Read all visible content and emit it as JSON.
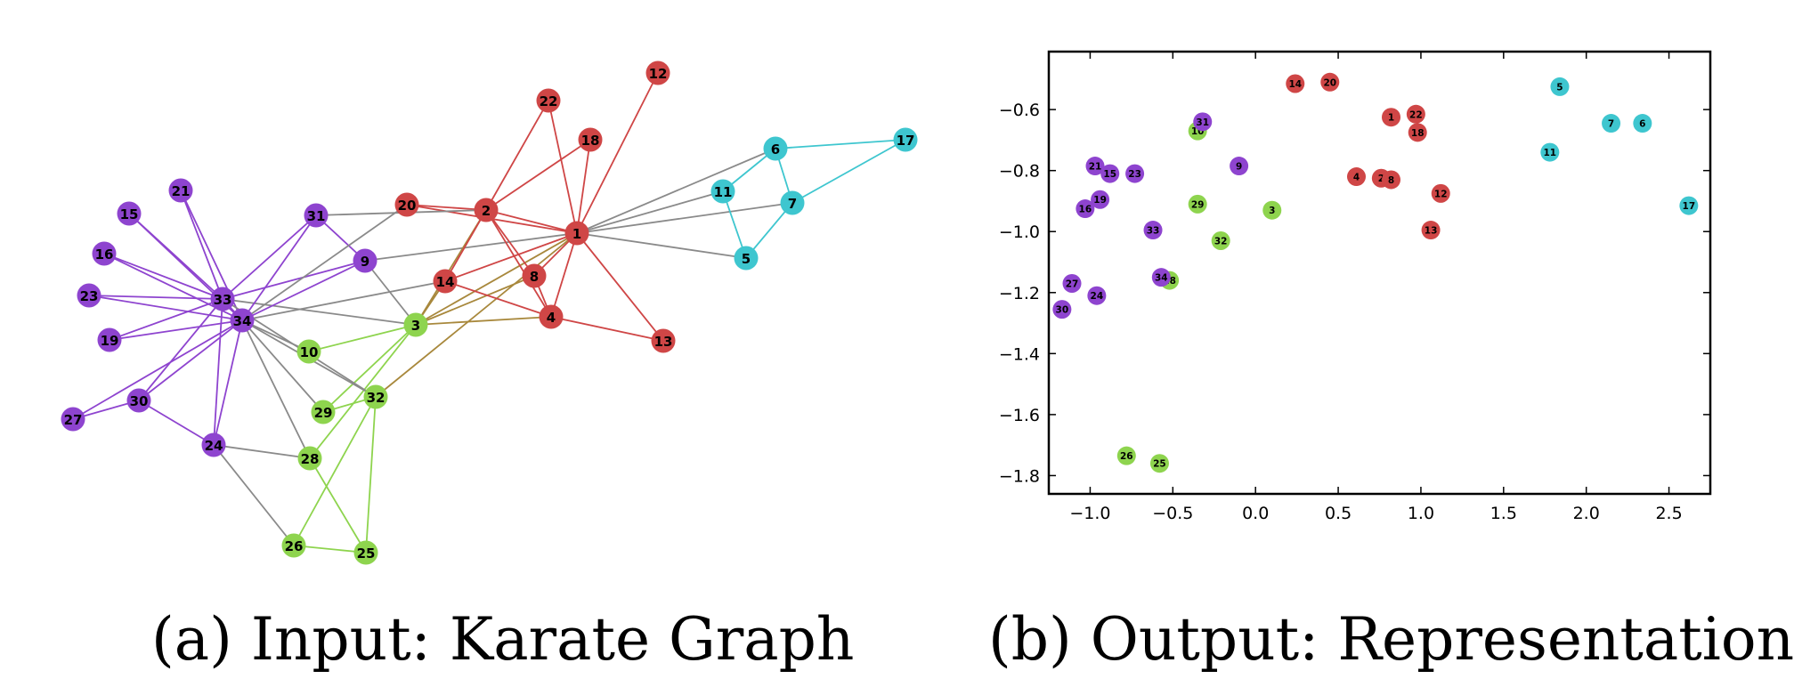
{
  "captions": {
    "a": "(a) Input: Karate Graph",
    "b": "(b) Output: Representation"
  },
  "colors": {
    "purple": "#8e44cf",
    "red": "#cf4646",
    "cyan": "#3ec6cf",
    "green": "#8ed44e",
    "gray_edge": "#8a8a8a",
    "olive_edge": "#a8883c"
  },
  "graph": {
    "nodes": [
      {
        "id": "1",
        "group": "red"
      },
      {
        "id": "2",
        "group": "red"
      },
      {
        "id": "3",
        "group": "green"
      },
      {
        "id": "4",
        "group": "red"
      },
      {
        "id": "5",
        "group": "cyan"
      },
      {
        "id": "6",
        "group": "cyan"
      },
      {
        "id": "7",
        "group": "cyan"
      },
      {
        "id": "8",
        "group": "red"
      },
      {
        "id": "9",
        "group": "purple"
      },
      {
        "id": "10",
        "group": "green"
      },
      {
        "id": "11",
        "group": "cyan"
      },
      {
        "id": "12",
        "group": "red"
      },
      {
        "id": "13",
        "group": "red"
      },
      {
        "id": "14",
        "group": "red"
      },
      {
        "id": "15",
        "group": "purple"
      },
      {
        "id": "16",
        "group": "purple"
      },
      {
        "id": "17",
        "group": "cyan"
      },
      {
        "id": "18",
        "group": "red"
      },
      {
        "id": "19",
        "group": "purple"
      },
      {
        "id": "20",
        "group": "red"
      },
      {
        "id": "21",
        "group": "purple"
      },
      {
        "id": "22",
        "group": "red"
      },
      {
        "id": "23",
        "group": "purple"
      },
      {
        "id": "24",
        "group": "purple"
      },
      {
        "id": "25",
        "group": "green"
      },
      {
        "id": "26",
        "group": "green"
      },
      {
        "id": "27",
        "group": "purple"
      },
      {
        "id": "28",
        "group": "green"
      },
      {
        "id": "29",
        "group": "green"
      },
      {
        "id": "30",
        "group": "purple"
      },
      {
        "id": "31",
        "group": "purple"
      },
      {
        "id": "32",
        "group": "green"
      },
      {
        "id": "33",
        "group": "purple"
      },
      {
        "id": "34",
        "group": "purple"
      }
    ],
    "edges": [
      [
        "1",
        "2"
      ],
      [
        "1",
        "3"
      ],
      [
        "1",
        "4"
      ],
      [
        "1",
        "5"
      ],
      [
        "1",
        "6"
      ],
      [
        "1",
        "7"
      ],
      [
        "1",
        "8"
      ],
      [
        "1",
        "9"
      ],
      [
        "1",
        "11"
      ],
      [
        "1",
        "12"
      ],
      [
        "1",
        "13"
      ],
      [
        "1",
        "14"
      ],
      [
        "1",
        "18"
      ],
      [
        "1",
        "20"
      ],
      [
        "1",
        "22"
      ],
      [
        "1",
        "32"
      ],
      [
        "2",
        "3"
      ],
      [
        "2",
        "4"
      ],
      [
        "2",
        "8"
      ],
      [
        "2",
        "14"
      ],
      [
        "2",
        "18"
      ],
      [
        "2",
        "20"
      ],
      [
        "2",
        "22"
      ],
      [
        "2",
        "31"
      ],
      [
        "3",
        "4"
      ],
      [
        "3",
        "8"
      ],
      [
        "3",
        "9"
      ],
      [
        "3",
        "10"
      ],
      [
        "3",
        "14"
      ],
      [
        "3",
        "28"
      ],
      [
        "3",
        "29"
      ],
      [
        "3",
        "33"
      ],
      [
        "4",
        "8"
      ],
      [
        "4",
        "13"
      ],
      [
        "4",
        "14"
      ],
      [
        "5",
        "7"
      ],
      [
        "5",
        "11"
      ],
      [
        "6",
        "7"
      ],
      [
        "6",
        "11"
      ],
      [
        "6",
        "17"
      ],
      [
        "7",
        "17"
      ],
      [
        "9",
        "31"
      ],
      [
        "9",
        "33"
      ],
      [
        "9",
        "34"
      ],
      [
        "10",
        "34"
      ],
      [
        "14",
        "34"
      ],
      [
        "15",
        "33"
      ],
      [
        "15",
        "34"
      ],
      [
        "16",
        "33"
      ],
      [
        "16",
        "34"
      ],
      [
        "19",
        "33"
      ],
      [
        "19",
        "34"
      ],
      [
        "20",
        "34"
      ],
      [
        "21",
        "33"
      ],
      [
        "21",
        "34"
      ],
      [
        "23",
        "33"
      ],
      [
        "23",
        "34"
      ],
      [
        "24",
        "26"
      ],
      [
        "24",
        "28"
      ],
      [
        "24",
        "30"
      ],
      [
        "24",
        "33"
      ],
      [
        "24",
        "34"
      ],
      [
        "25",
        "26"
      ],
      [
        "25",
        "28"
      ],
      [
        "25",
        "32"
      ],
      [
        "26",
        "32"
      ],
      [
        "27",
        "30"
      ],
      [
        "27",
        "34"
      ],
      [
        "28",
        "34"
      ],
      [
        "29",
        "32"
      ],
      [
        "29",
        "34"
      ],
      [
        "30",
        "33"
      ],
      [
        "30",
        "34"
      ],
      [
        "31",
        "33"
      ],
      [
        "31",
        "34"
      ],
      [
        "32",
        "33"
      ],
      [
        "32",
        "34"
      ],
      [
        "33",
        "34"
      ]
    ]
  },
  "chart_data": {
    "type": "scatter",
    "xlim": [
      -1.25,
      2.75
    ],
    "ylim": [
      -1.86,
      -0.41
    ],
    "xticks": [
      -1.0,
      -0.5,
      0.0,
      0.5,
      1.0,
      1.5,
      2.0,
      2.5
    ],
    "xtick_labels": [
      "−1.0",
      "−0.5",
      "0.0",
      "0.5",
      "1.0",
      "1.5",
      "2.0",
      "2.5"
    ],
    "yticks": [
      -0.6,
      -0.8,
      -1.0,
      -1.2,
      -1.4,
      -1.6,
      -1.8
    ],
    "ytick_labels": [
      "−0.6",
      "−0.8",
      "−1.0",
      "−1.2",
      "−1.4",
      "−1.6",
      "−1.8"
    ],
    "grid": false,
    "points": [
      {
        "label": "1",
        "x": 0.82,
        "y": -0.625,
        "group": "red"
      },
      {
        "label": "2",
        "x": 0.76,
        "y": -0.825,
        "group": "red"
      },
      {
        "label": "3",
        "x": 0.1,
        "y": -0.93,
        "group": "green"
      },
      {
        "label": "4",
        "x": 0.61,
        "y": -0.82,
        "group": "red"
      },
      {
        "label": "5",
        "x": 1.84,
        "y": -0.525,
        "group": "cyan"
      },
      {
        "label": "6",
        "x": 2.34,
        "y": -0.645,
        "group": "cyan"
      },
      {
        "label": "7",
        "x": 2.15,
        "y": -0.645,
        "group": "cyan"
      },
      {
        "label": "8",
        "x": 0.82,
        "y": -0.83,
        "group": "red"
      },
      {
        "label": "9",
        "x": -0.1,
        "y": -0.785,
        "group": "purple"
      },
      {
        "label": "10",
        "x": -0.35,
        "y": -0.67,
        "group": "green"
      },
      {
        "label": "11",
        "x": 1.78,
        "y": -0.74,
        "group": "cyan"
      },
      {
        "label": "12",
        "x": 1.12,
        "y": -0.875,
        "group": "red"
      },
      {
        "label": "13",
        "x": 1.06,
        "y": -0.995,
        "group": "red"
      },
      {
        "label": "14",
        "x": 0.24,
        "y": -0.515,
        "group": "red"
      },
      {
        "label": "15",
        "x": -0.88,
        "y": -0.81,
        "group": "purple"
      },
      {
        "label": "16",
        "x": -1.03,
        "y": -0.925,
        "group": "purple"
      },
      {
        "label": "17",
        "x": 2.62,
        "y": -0.915,
        "group": "cyan"
      },
      {
        "label": "18",
        "x": 0.98,
        "y": -0.675,
        "group": "red"
      },
      {
        "label": "19",
        "x": -0.94,
        "y": -0.895,
        "group": "purple"
      },
      {
        "label": "20",
        "x": 0.45,
        "y": -0.51,
        "group": "red"
      },
      {
        "label": "21",
        "x": -0.97,
        "y": -0.785,
        "group": "purple"
      },
      {
        "label": "22",
        "x": 0.97,
        "y": -0.615,
        "group": "red"
      },
      {
        "label": "23",
        "x": -0.73,
        "y": -0.81,
        "group": "purple"
      },
      {
        "label": "24",
        "x": -0.96,
        "y": -1.21,
        "group": "purple"
      },
      {
        "label": "25",
        "x": -0.58,
        "y": -1.76,
        "group": "green"
      },
      {
        "label": "26",
        "x": -0.78,
        "y": -1.735,
        "group": "green"
      },
      {
        "label": "27",
        "x": -1.11,
        "y": -1.17,
        "group": "purple"
      },
      {
        "label": "28",
        "x": -0.52,
        "y": -1.16,
        "group": "green"
      },
      {
        "label": "29",
        "x": -0.35,
        "y": -0.91,
        "group": "green"
      },
      {
        "label": "30",
        "x": -1.17,
        "y": -1.255,
        "group": "purple"
      },
      {
        "label": "31",
        "x": -0.32,
        "y": -0.64,
        "group": "purple"
      },
      {
        "label": "32",
        "x": -0.21,
        "y": -1.03,
        "group": "green"
      },
      {
        "label": "33",
        "x": -0.62,
        "y": -0.995,
        "group": "purple"
      },
      {
        "label": "34",
        "x": -0.57,
        "y": -1.15,
        "group": "purple"
      }
    ]
  }
}
